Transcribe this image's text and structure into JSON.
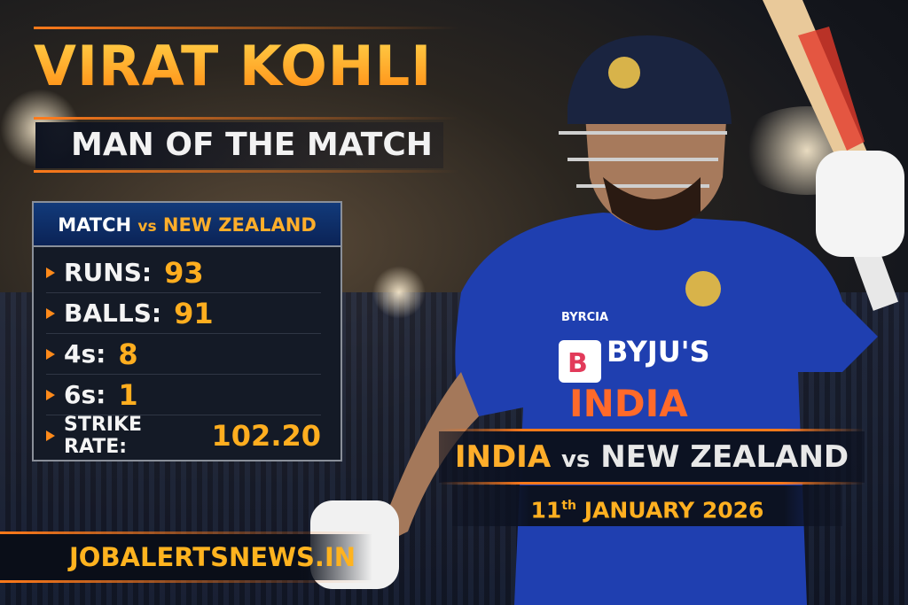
{
  "header": {
    "name": "VIRAT KOHLI",
    "award": "MAN OF THE MATCH"
  },
  "stats": {
    "title_match": "MATCH",
    "title_vs": "vs",
    "title_opponent": "NEW ZEALAND",
    "items": [
      {
        "label": "RUNS:",
        "value": "93"
      },
      {
        "label": "BALLS:",
        "value": "91"
      },
      {
        "label": "4s:",
        "value": "8"
      },
      {
        "label": "6s:",
        "value": "1"
      },
      {
        "label": "STRIKE RATE:",
        "value": "102.20"
      }
    ]
  },
  "fixture": {
    "team1": "INDIA",
    "vs": "vs",
    "team2": "NEW ZEALAND",
    "day": "11",
    "day_suffix": "th",
    "month_year": "JANUARY 2026"
  },
  "footer": {
    "website": "JOBALERTSNEWS.IN"
  },
  "jersey": {
    "sponsor": "BYJU'S",
    "country": "INDIA",
    "kit": "BYRCIA"
  },
  "colors": {
    "accent": "#ff8a12",
    "gold": "#ffae1f",
    "jersey_blue": "#1f3fb0",
    "panel": "#141a26"
  }
}
